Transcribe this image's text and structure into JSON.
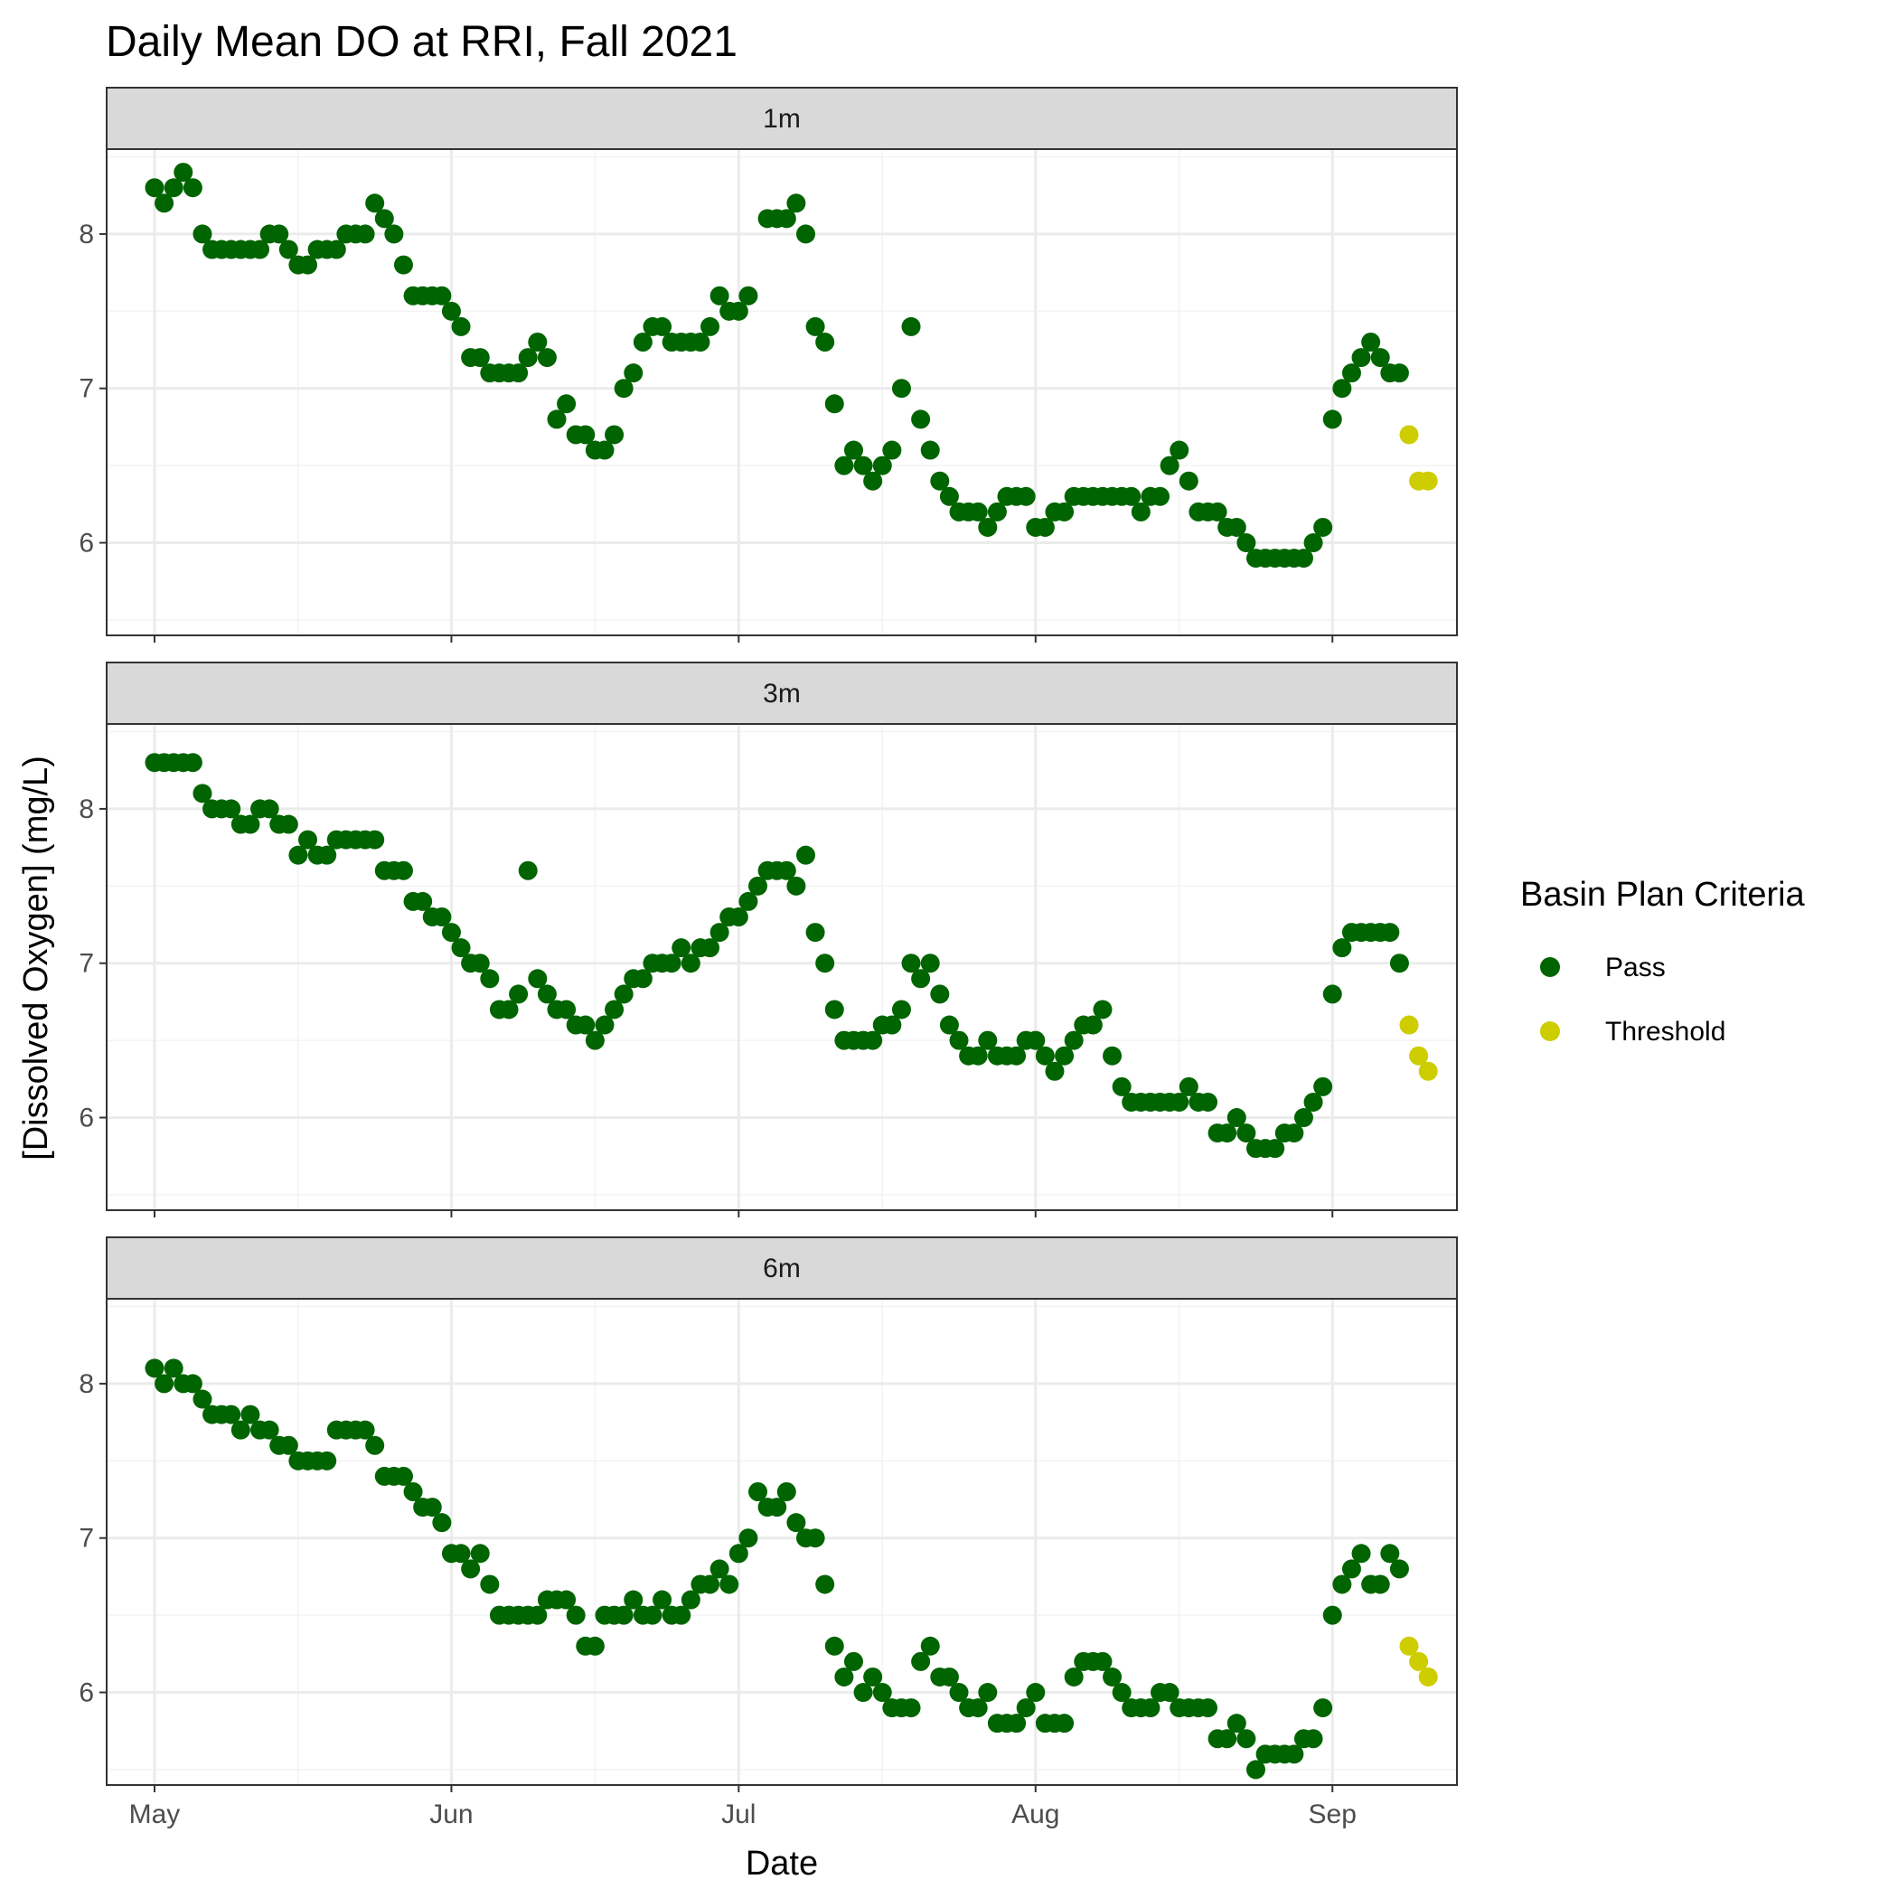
{
  "chart_data": {
    "type": "scatter",
    "title": "Daily Mean DO at RRI, Fall 2021",
    "xlabel": "Date",
    "ylabel": "[Dissolved Oxygen] (mg/L)",
    "x_ticks": [
      "May",
      "Jun",
      "Jul",
      "Aug",
      "Sep"
    ],
    "y_ticks": [
      "6",
      "7",
      "8"
    ],
    "ylim": [
      5.4,
      8.55
    ],
    "xlim": [
      "2021-04-26",
      "2021-09-14"
    ],
    "grid": true,
    "legend": {
      "title": "Basin Plan Criteria",
      "placement": "right",
      "entries": [
        {
          "label": "Pass",
          "color": "#006400"
        },
        {
          "label": "Threshold",
          "color": "#CDCD00"
        }
      ]
    },
    "start_date": "2021-05-01",
    "panels": [
      {
        "label": "1m",
        "values": [
          8.3,
          8.2,
          8.3,
          8.4,
          8.3,
          8.0,
          7.9,
          7.9,
          7.9,
          7.9,
          7.9,
          7.9,
          8.0,
          8.0,
          7.9,
          7.8,
          7.8,
          7.9,
          7.9,
          7.9,
          8.0,
          8.0,
          8.0,
          8.2,
          8.1,
          8.0,
          7.8,
          7.6,
          7.6,
          7.6,
          7.6,
          7.5,
          7.4,
          7.2,
          7.2,
          7.1,
          7.1,
          7.1,
          7.1,
          7.2,
          7.3,
          7.2,
          6.8,
          6.9,
          6.7,
          6.7,
          6.6,
          6.6,
          6.7,
          7.0,
          7.1,
          7.3,
          7.4,
          7.4,
          7.3,
          7.3,
          7.3,
          7.3,
          7.4,
          7.6,
          7.5,
          7.5,
          7.6,
          null,
          8.1,
          8.1,
          8.1,
          8.2,
          8.0,
          7.4,
          7.3,
          6.9,
          6.5,
          6.6,
          6.5,
          6.4,
          6.5,
          6.6,
          7.0,
          7.4,
          6.8,
          6.6,
          6.4,
          6.3,
          6.2,
          6.2,
          6.2,
          6.1,
          6.2,
          6.3,
          6.3,
          6.3,
          6.1,
          6.1,
          6.2,
          6.2,
          6.3,
          6.3,
          6.3,
          6.3,
          6.3,
          6.3,
          6.3,
          6.2,
          6.3,
          6.3,
          6.5,
          6.6,
          6.4,
          6.2,
          6.2,
          6.2,
          6.1,
          6.1,
          6.0,
          5.9,
          5.9,
          5.9,
          5.9,
          5.9,
          5.9,
          6.0,
          6.1,
          6.8,
          7.0,
          7.1,
          7.2,
          7.3,
          7.2,
          7.1,
          7.1,
          6.7,
          6.4,
          6.4
        ],
        "threshold_from": 131
      },
      {
        "label": "3m",
        "values": [
          8.3,
          8.3,
          8.3,
          8.3,
          8.3,
          8.1,
          8.0,
          8.0,
          8.0,
          7.9,
          7.9,
          8.0,
          8.0,
          7.9,
          7.9,
          7.7,
          7.8,
          7.7,
          7.7,
          7.8,
          7.8,
          7.8,
          7.8,
          7.8,
          7.6,
          7.6,
          7.6,
          7.4,
          7.4,
          7.3,
          7.3,
          7.2,
          7.1,
          7.0,
          7.0,
          6.9,
          6.7,
          6.7,
          6.8,
          7.6,
          6.9,
          6.8,
          6.7,
          6.7,
          6.6,
          6.6,
          6.5,
          6.6,
          6.7,
          6.8,
          6.9,
          6.9,
          7.0,
          7.0,
          7.0,
          7.1,
          7.0,
          7.1,
          7.1,
          7.2,
          7.3,
          7.3,
          7.4,
          7.5,
          7.6,
          7.6,
          7.6,
          7.5,
          7.7,
          7.2,
          7.0,
          6.7,
          6.5,
          6.5,
          6.5,
          6.5,
          6.6,
          6.6,
          6.7,
          7.0,
          6.9,
          7.0,
          6.8,
          6.6,
          6.5,
          6.4,
          6.4,
          6.5,
          6.4,
          6.4,
          6.4,
          6.5,
          6.5,
          6.4,
          6.3,
          6.4,
          6.5,
          6.6,
          6.6,
          6.7,
          6.4,
          6.2,
          6.1,
          6.1,
          6.1,
          6.1,
          6.1,
          6.1,
          6.2,
          6.1,
          6.1,
          5.9,
          5.9,
          6.0,
          5.9,
          5.8,
          5.8,
          5.8,
          5.9,
          5.9,
          6.0,
          6.1,
          6.2,
          6.8,
          7.1,
          7.2,
          7.2,
          7.2,
          7.2,
          7.2,
          7.0,
          6.6,
          6.4,
          6.3
        ],
        "threshold_from": 131
      },
      {
        "label": "6m",
        "values": [
          8.1,
          8.0,
          8.1,
          8.0,
          8.0,
          7.9,
          7.8,
          7.8,
          7.8,
          7.7,
          7.8,
          7.7,
          7.7,
          7.6,
          7.6,
          7.5,
          7.5,
          7.5,
          7.5,
          7.7,
          7.7,
          7.7,
          7.7,
          7.6,
          7.4,
          7.4,
          7.4,
          7.3,
          7.2,
          7.2,
          7.1,
          6.9,
          6.9,
          6.8,
          6.9,
          6.7,
          6.5,
          6.5,
          6.5,
          6.5,
          6.5,
          6.6,
          6.6,
          6.6,
          6.5,
          6.3,
          6.3,
          6.5,
          6.5,
          6.5,
          6.6,
          6.5,
          6.5,
          6.6,
          6.5,
          6.5,
          6.6,
          6.7,
          6.7,
          6.8,
          6.7,
          6.9,
          7.0,
          7.3,
          7.2,
          7.2,
          7.3,
          7.1,
          7.0,
          7.0,
          6.7,
          6.3,
          6.1,
          6.2,
          6.0,
          6.1,
          6.0,
          5.9,
          5.9,
          5.9,
          6.2,
          6.3,
          6.1,
          6.1,
          6.0,
          5.9,
          5.9,
          6.0,
          5.8,
          5.8,
          5.8,
          5.9,
          6.0,
          5.8,
          5.8,
          5.8,
          6.1,
          6.2,
          6.2,
          6.2,
          6.1,
          6.0,
          5.9,
          5.9,
          5.9,
          6.0,
          6.0,
          5.9,
          5.9,
          5.9,
          5.9,
          5.7,
          5.7,
          5.8,
          5.7,
          5.5,
          5.6,
          5.6,
          5.6,
          5.6,
          5.7,
          5.7,
          5.9,
          6.5,
          6.7,
          6.8,
          6.9,
          6.7,
          6.7,
          6.9,
          6.8,
          6.3,
          6.2,
          6.1
        ],
        "threshold_from": 131
      }
    ]
  }
}
